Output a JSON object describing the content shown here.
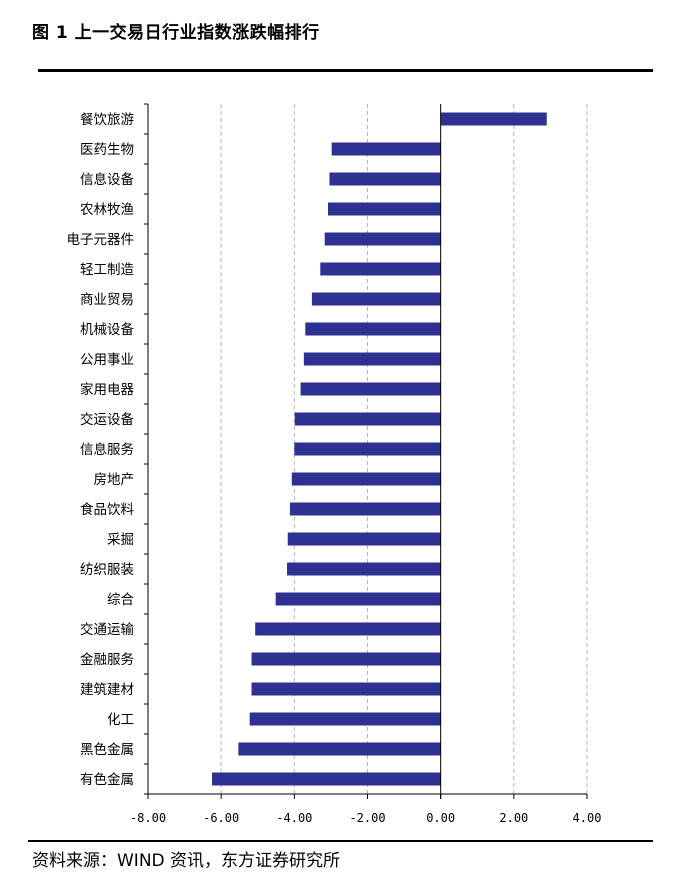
{
  "figure": {
    "title": "图 1  上一交易日行业指数涨跌幅排行",
    "source": "资料来源：WIND 资讯，东方证券研究所"
  },
  "chart_data": {
    "type": "bar",
    "orientation": "horizontal",
    "title": "",
    "xlabel": "",
    "ylabel": "",
    "xlim": [
      -8,
      4
    ],
    "ticks": [
      "-8.00",
      "-6.00",
      "-4.00",
      "-2.00",
      "0.00",
      "2.00",
      "4.00"
    ],
    "tick_values": [
      -8,
      -6,
      -4,
      -2,
      0,
      2,
      4
    ],
    "grid": "vertical dashed",
    "bar_color": "#2e3192",
    "categories": [
      "餐饮旅游",
      "医药生物",
      "信息设备",
      "农林牧渔",
      "电子元器件",
      "轻工制造",
      "商业贸易",
      "机械设备",
      "公用事业",
      "家用电器",
      "交运设备",
      "信息服务",
      "房地产",
      "食品饮料",
      "采掘",
      "纺织服装",
      "综合",
      "交通运输",
      "金融服务",
      "建筑建材",
      "化工",
      "黑色金属",
      "有色金属"
    ],
    "values": [
      2.9,
      -2.98,
      -3.04,
      -3.08,
      -3.17,
      -3.29,
      -3.52,
      -3.7,
      -3.74,
      -3.83,
      -3.99,
      -4.0,
      -4.07,
      -4.12,
      -4.18,
      -4.2,
      -4.51,
      -5.07,
      -5.17,
      -5.17,
      -5.22,
      -5.53,
      -6.25
    ]
  }
}
